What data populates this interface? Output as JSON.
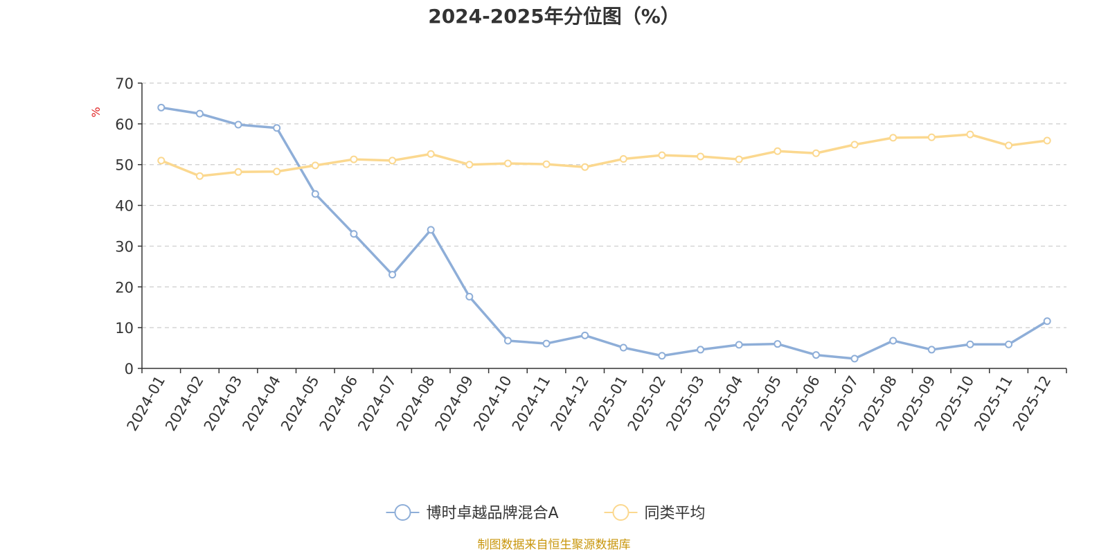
{
  "chart_data": {
    "type": "line",
    "title": "2024-2025年分位图（%）",
    "ylabel": "%",
    "xlabel": "",
    "ylim": [
      0,
      70
    ],
    "yticks": [
      0,
      10,
      20,
      30,
      40,
      50,
      60,
      70
    ],
    "grid": true,
    "legend_position": "bottom",
    "categories": [
      "2024-01",
      "2024-02",
      "2024-03",
      "2024-04",
      "2024-05",
      "2024-06",
      "2024-07",
      "2024-08",
      "2024-09",
      "2024-10",
      "2024-11",
      "2024-12",
      "2025-01",
      "2025-02",
      "2025-03",
      "2025-04",
      "2025-05",
      "2025-06",
      "2025-07",
      "2025-08",
      "2025-09",
      "2025-10",
      "2025-11",
      "2025-12"
    ],
    "series": [
      {
        "name": "博时卓越品牌混合A",
        "color": "#8eaed8",
        "values": [
          64,
          62.5,
          59.8,
          59,
          42.8,
          33,
          23,
          34,
          17.6,
          6.8,
          6.1,
          8.1,
          5.1,
          3.1,
          4.6,
          5.8,
          6,
          3.3,
          2.4,
          6.8,
          4.6,
          5.9,
          5.9,
          11.6
        ]
      },
      {
        "name": "同类平均",
        "color": "#fbd88f",
        "values": [
          51,
          47.2,
          48.2,
          48.3,
          49.8,
          51.3,
          51,
          52.6,
          50,
          50.3,
          50.1,
          49.4,
          51.4,
          52.3,
          52,
          51.3,
          53.3,
          52.8,
          54.9,
          56.6,
          56.7,
          57.4,
          54.7,
          55.9
        ]
      }
    ],
    "source": "制图数据来自恒生聚源数据库",
    "source_color": "#c8960c",
    "unit_color": "#e02020",
    "axis_color": "#333333",
    "grid_color": "#cccccc"
  }
}
